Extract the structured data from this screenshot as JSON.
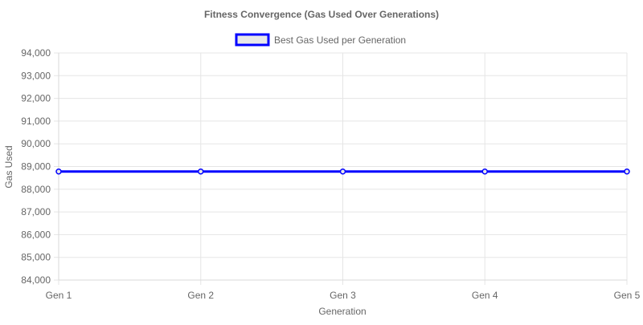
{
  "chart_data": {
    "type": "line",
    "title": "Fitness Convergence (Gas Used Over Generations)",
    "xlabel": "Generation",
    "ylabel": "Gas Used",
    "categories": [
      "Gen 1",
      "Gen 2",
      "Gen 3",
      "Gen 4",
      "Gen 5"
    ],
    "ylim": [
      84000,
      94000
    ],
    "yticks": [
      "84,000",
      "85,000",
      "86,000",
      "87,000",
      "88,000",
      "89,000",
      "90,000",
      "91,000",
      "92,000",
      "93,000",
      "94,000"
    ],
    "ytick_values": [
      84000,
      85000,
      86000,
      87000,
      88000,
      89000,
      90000,
      91000,
      92000,
      93000,
      94000
    ],
    "series": [
      {
        "name": "Best Gas Used per Generation",
        "values": [
          88780,
          88780,
          88780,
          88780,
          88780
        ],
        "color": "#0000ff",
        "fill": "#e8e8e8"
      }
    ],
    "legend": "top-center",
    "grid": true
  },
  "colors": {
    "grid": "#e5e5e5",
    "text": "#666666"
  }
}
